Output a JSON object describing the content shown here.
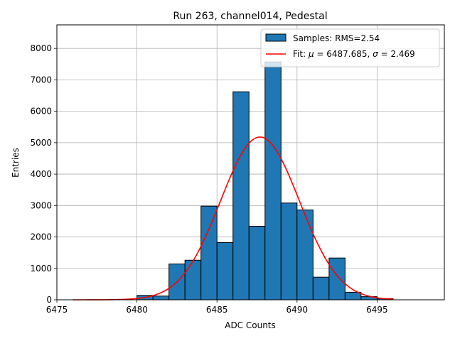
{
  "chart_data": {
    "type": "bar",
    "title": "Run 263, channel014, Pedestal",
    "xlabel": "ADC Counts",
    "ylabel": "Entries",
    "xlim": [
      6475,
      6499.2
    ],
    "ylim": [
      0,
      8750
    ],
    "xticks": [
      6475,
      6480,
      6485,
      6490,
      6495
    ],
    "yticks": [
      0,
      1000,
      2000,
      3000,
      4000,
      5000,
      6000,
      7000,
      8000
    ],
    "grid": true,
    "legend_position": "top-right",
    "histogram": {
      "name": "Samples: RMS=2.54",
      "color": "#1f77b4",
      "edgecolor": "#000000",
      "bin_edges": [
        6480,
        6481,
        6482,
        6483,
        6484,
        6485,
        6486,
        6487,
        6488,
        6489,
        6490,
        6491,
        6492,
        6493,
        6494,
        6495,
        6496
      ],
      "counts": [
        140,
        120,
        1140,
        1260,
        2980,
        1820,
        6620,
        2340,
        7570,
        3080,
        2860,
        720,
        1330,
        240,
        100,
        40
      ]
    },
    "fit": {
      "name": "Fit: $\\mu$ = 6487.685, $\\sigma$ = 2.469",
      "color": "#ff0000",
      "mu": 6487.685,
      "sigma": 2.469,
      "amplitude": 5180,
      "x_range": [
        6476,
        6496
      ]
    }
  }
}
